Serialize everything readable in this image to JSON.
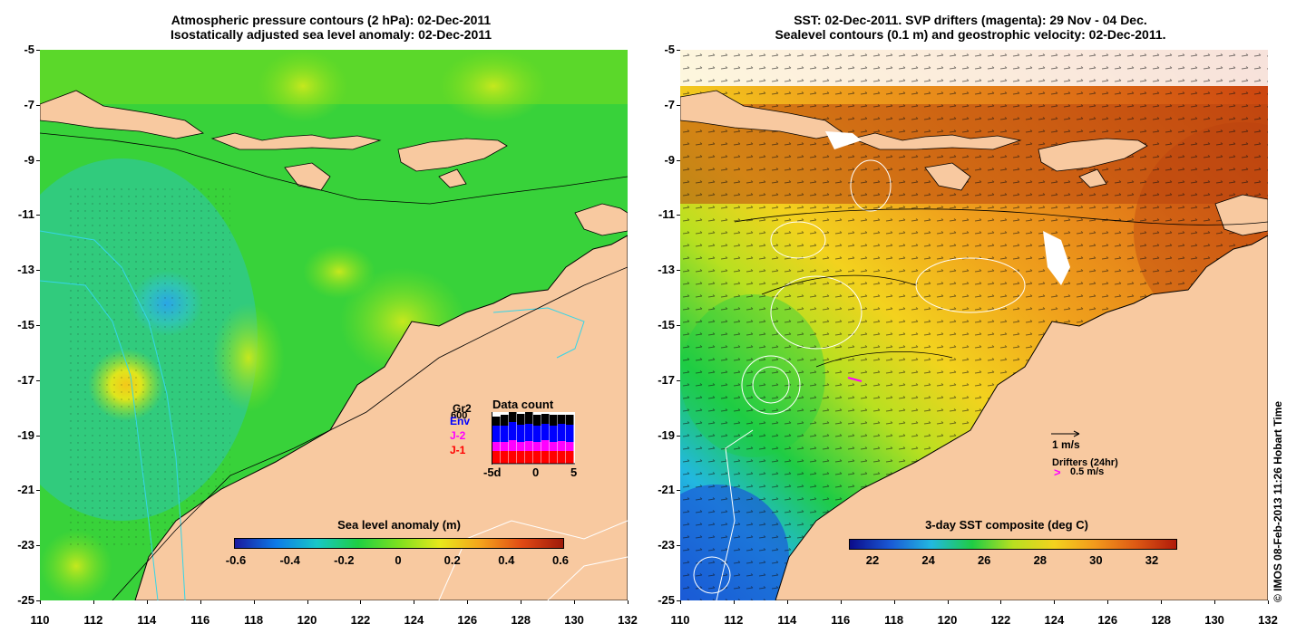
{
  "left_panel": {
    "title_line1": "Atmospheric pressure contours (2 hPa): 02-Dec-2011",
    "title_line2": "Isostatically adjusted sea level anomaly: 02-Dec-2011",
    "colorbar_label": "Sea level anomaly (m)",
    "colorbar_ticks": [
      "-0.6",
      "-0.4",
      "-0.2",
      "0",
      "0.2",
      "0.4",
      "0.6"
    ],
    "data_count": {
      "title": "Data count",
      "max_label": "600",
      "sources": [
        {
          "name": "Gr2",
          "color": "#000000"
        },
        {
          "name": "Env",
          "color": "#0000ff"
        },
        {
          "name": "J-2",
          "color": "#ff00ff"
        },
        {
          "name": "J-1",
          "color": "#ff0000"
        }
      ],
      "x_ticks": [
        "-5d",
        "0",
        "5"
      ]
    }
  },
  "right_panel": {
    "title_line1": "SST: 02-Dec-2011. SVP drifters (magenta): 29 Nov - 04 Dec.",
    "title_line2": "Sealevel contours (0.1 m) and geostrophic velocity: 02-Dec-2011.",
    "colorbar_label": "3-day SST composite (deg C)",
    "colorbar_ticks": [
      "22",
      "24",
      "26",
      "28",
      "30",
      "32"
    ],
    "velocity_legend": "1 m/s",
    "drifter_legend_title": "Drifters (24hr)",
    "drifter_legend_speed": "0.5 m/s",
    "drifter_color": "#ff00ff"
  },
  "axes": {
    "y_ticks": [
      "-5",
      "-7",
      "-9",
      "-11",
      "-13",
      "-15",
      "-17",
      "-19",
      "-21",
      "-23",
      "-25"
    ],
    "x_ticks": [
      "110",
      "112",
      "114",
      "116",
      "118",
      "120",
      "122",
      "124",
      "126",
      "128",
      "130",
      "132"
    ],
    "lat_range": [
      -25,
      -5
    ],
    "lon_range": [
      110,
      132
    ]
  },
  "colors": {
    "land": "#f8c9a0",
    "slm_scale": [
      "#1a1a9e",
      "#0d7ae8",
      "#18c7c7",
      "#1ecf43",
      "#7ee01f",
      "#e8e81c",
      "#f5a21c",
      "#e04a14",
      "#9e1a0a"
    ],
    "sst_scale": [
      "#0b0b8a",
      "#1a5ad6",
      "#22b8e0",
      "#1fcc44",
      "#b8e020",
      "#f3d21e",
      "#f39a1c",
      "#de5a14",
      "#b01a0a"
    ]
  },
  "credit": "© IMOS 08-Feb-2013 11:26 Hobart Time"
}
